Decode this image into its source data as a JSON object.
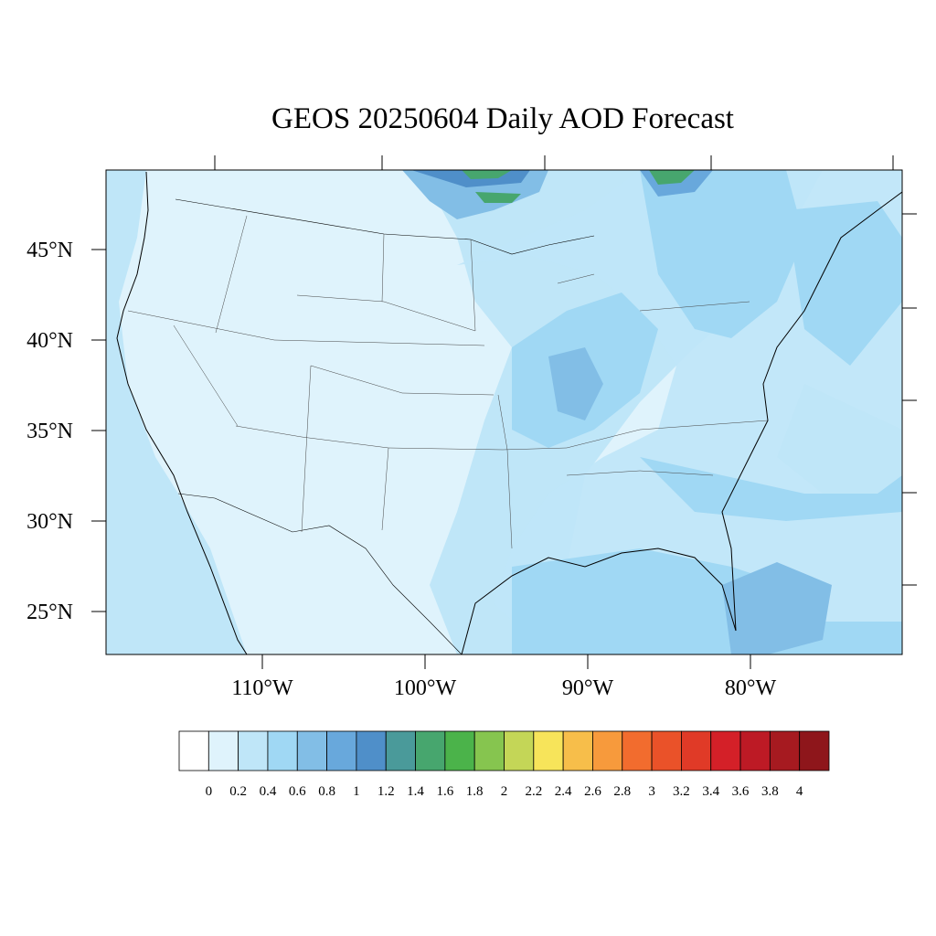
{
  "title": "GEOS 20250604 Daily AOD Forecast",
  "lat_ticks": [
    "45°N",
    "40°N",
    "35°N",
    "30°N",
    "25°N"
  ],
  "lon_ticks": [
    "110°W",
    "100°W",
    "90°W",
    "80°W"
  ],
  "colorbar": {
    "labels": [
      "0",
      "0.2",
      "0.4",
      "0.6",
      "0.8",
      "1",
      "1.2",
      "1.4",
      "1.6",
      "1.8",
      "2",
      "2.2",
      "2.4",
      "2.6",
      "2.8",
      "3",
      "3.2",
      "3.4",
      "3.6",
      "3.8",
      "4"
    ],
    "colors": [
      "#ffffff",
      "#dff3fc",
      "#bfe6f8",
      "#a0d8f4",
      "#82bee6",
      "#68a8dc",
      "#4f8fc9",
      "#4a9a9a",
      "#47a66e",
      "#4bb34a",
      "#86c54f",
      "#c4d657",
      "#f7e45a",
      "#f7be4a",
      "#f79a3c",
      "#f26c2e",
      "#ea5229",
      "#e03a27",
      "#d42028",
      "#bd1a25",
      "#a61a20",
      "#8e161b"
    ]
  }
}
